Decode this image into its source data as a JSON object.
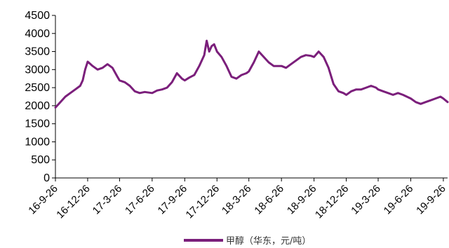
{
  "chart_data": {
    "type": "line",
    "title": "",
    "xlabel": "",
    "ylabel": "",
    "ylim": [
      0,
      4500
    ],
    "yticks": [
      0,
      500,
      1000,
      1500,
      2000,
      2500,
      3000,
      3500,
      4000,
      4500
    ],
    "xtick_labels": [
      "16-9-26",
      "16-12-26",
      "17-3-26",
      "17-6-26",
      "17-9-26",
      "17-12-26",
      "18-3-26",
      "18-6-26",
      "18-9-26",
      "18-12-26",
      "19-3-26",
      "19-6-26",
      "19-9-26"
    ],
    "grid": false,
    "legend_position": "bottom-center",
    "series": [
      {
        "name": "甲醇（华东，元/吨）",
        "color": "#7B1F7B",
        "points": [
          [
            "16-9-26",
            1950
          ],
          [
            "16-10-10",
            2100
          ],
          [
            "16-10-24",
            2250
          ],
          [
            "16-11-07",
            2350
          ],
          [
            "16-11-21",
            2450
          ],
          [
            "16-12-05",
            2550
          ],
          [
            "16-12-12",
            2700
          ],
          [
            "16-12-19",
            3000
          ],
          [
            "16-12-26",
            3220
          ],
          [
            "17-01-09",
            3100
          ],
          [
            "17-01-23",
            3000
          ],
          [
            "17-02-06",
            3050
          ],
          [
            "17-02-20",
            3150
          ],
          [
            "17-03-06",
            3050
          ],
          [
            "17-03-20",
            2800
          ],
          [
            "17-03-26",
            2700
          ],
          [
            "17-04-10",
            2650
          ],
          [
            "17-04-24",
            2550
          ],
          [
            "17-05-08",
            2400
          ],
          [
            "17-05-22",
            2350
          ],
          [
            "17-06-05",
            2380
          ],
          [
            "17-06-26",
            2350
          ],
          [
            "17-07-10",
            2420
          ],
          [
            "17-07-24",
            2450
          ],
          [
            "17-08-07",
            2500
          ],
          [
            "17-08-21",
            2650
          ],
          [
            "17-09-04",
            2900
          ],
          [
            "17-09-18",
            2750
          ],
          [
            "17-09-26",
            2700
          ],
          [
            "17-10-09",
            2780
          ],
          [
            "17-10-23",
            2850
          ],
          [
            "17-11-06",
            3100
          ],
          [
            "17-11-20",
            3400
          ],
          [
            "17-11-27",
            3800
          ],
          [
            "17-12-04",
            3500
          ],
          [
            "17-12-11",
            3650
          ],
          [
            "17-12-18",
            3700
          ],
          [
            "17-12-26",
            3500
          ],
          [
            "18-01-08",
            3350
          ],
          [
            "18-01-22",
            3100
          ],
          [
            "18-02-05",
            2800
          ],
          [
            "18-02-19",
            2750
          ],
          [
            "18-03-05",
            2850
          ],
          [
            "18-03-19",
            2900
          ],
          [
            "18-03-26",
            2950
          ],
          [
            "18-04-09",
            3200
          ],
          [
            "18-04-23",
            3500
          ],
          [
            "18-05-07",
            3350
          ],
          [
            "18-05-21",
            3200
          ],
          [
            "18-06-04",
            3100
          ],
          [
            "18-06-26",
            3100
          ],
          [
            "18-07-09",
            3050
          ],
          [
            "18-07-23",
            3150
          ],
          [
            "18-08-06",
            3250
          ],
          [
            "18-08-20",
            3350
          ],
          [
            "18-09-03",
            3400
          ],
          [
            "18-09-17",
            3380
          ],
          [
            "18-09-26",
            3350
          ],
          [
            "18-10-09",
            3500
          ],
          [
            "18-10-23",
            3350
          ],
          [
            "18-11-06",
            3050
          ],
          [
            "18-11-20",
            2600
          ],
          [
            "18-12-04",
            2400
          ],
          [
            "18-12-18",
            2350
          ],
          [
            "18-12-26",
            2300
          ],
          [
            "19-01-09",
            2400
          ],
          [
            "19-01-23",
            2450
          ],
          [
            "19-02-06",
            2450
          ],
          [
            "19-02-20",
            2500
          ],
          [
            "19-03-06",
            2550
          ],
          [
            "19-03-20",
            2500
          ],
          [
            "19-03-26",
            2450
          ],
          [
            "19-04-09",
            2400
          ],
          [
            "19-04-23",
            2350
          ],
          [
            "19-05-07",
            2300
          ],
          [
            "19-05-21",
            2350
          ],
          [
            "19-06-04",
            2300
          ],
          [
            "19-06-26",
            2200
          ],
          [
            "19-07-10",
            2100
          ],
          [
            "19-07-24",
            2050
          ],
          [
            "19-08-07",
            2100
          ],
          [
            "19-08-21",
            2150
          ],
          [
            "19-09-04",
            2200
          ],
          [
            "19-09-18",
            2250
          ],
          [
            "19-09-26",
            2200
          ],
          [
            "19-10-08",
            2100
          ]
        ]
      }
    ]
  }
}
